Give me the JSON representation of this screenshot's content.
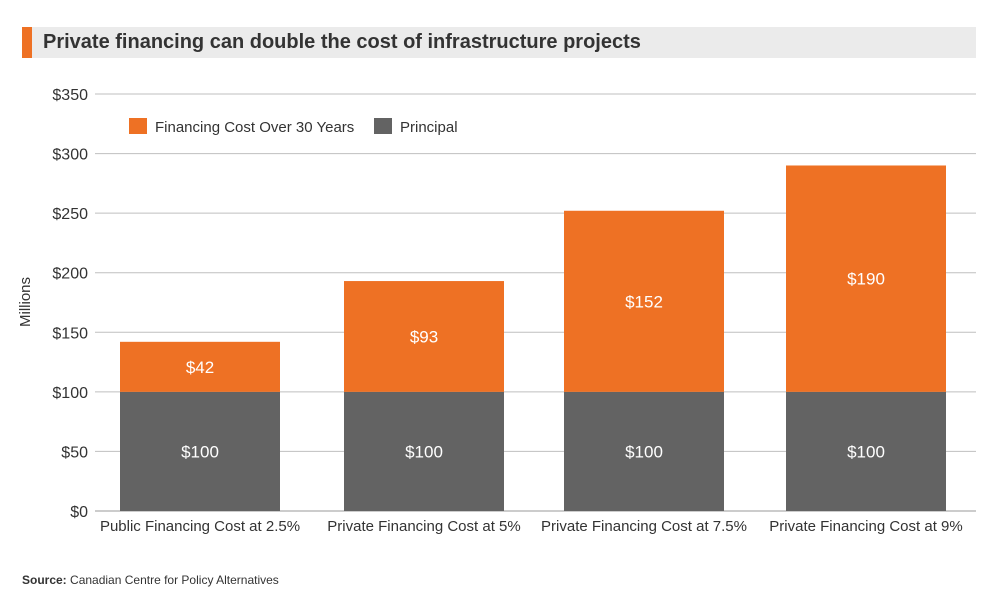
{
  "title": "Private financing can double the cost of infrastructure projects",
  "source": {
    "label": "Source:",
    "text": "Canadian Centre for Policy Alternatives"
  },
  "colors": {
    "financing": "#ee7124",
    "principal": "#636363",
    "grid": "#bfbfbf",
    "axis": "#999999",
    "text": "#333333",
    "title_accent": "#ee7124"
  },
  "chart_data": {
    "type": "bar",
    "stacked": true,
    "title": "Private financing can double the cost of infrastructure projects",
    "xlabel": "",
    "ylabel": "Millions",
    "ylim": [
      0,
      350
    ],
    "yticks": [
      0,
      50,
      100,
      150,
      200,
      250,
      300,
      350
    ],
    "ytick_labels": [
      "$0",
      "$50",
      "$100",
      "$150",
      "$200",
      "$250",
      "$300",
      "$350"
    ],
    "grid": true,
    "legend_position": "top-left",
    "categories": [
      "Public Financing Cost at 2.5%",
      "Private Financing Cost at 5%",
      "Private Financing Cost at 7.5%",
      "Private Financing Cost at 9%"
    ],
    "series": [
      {
        "name": "Principal",
        "color": "#636363",
        "values": [
          100,
          100,
          100,
          100
        ],
        "labels": [
          "$100",
          "$100",
          "$100",
          "$100"
        ]
      },
      {
        "name": "Financing Cost Over 30 Years",
        "color": "#ee7124",
        "values": [
          42,
          93,
          152,
          190
        ],
        "labels": [
          "$42",
          "$93",
          "$152",
          "$190"
        ]
      }
    ],
    "legend": [
      "Financing Cost Over 30 Years",
      "Principal"
    ]
  }
}
